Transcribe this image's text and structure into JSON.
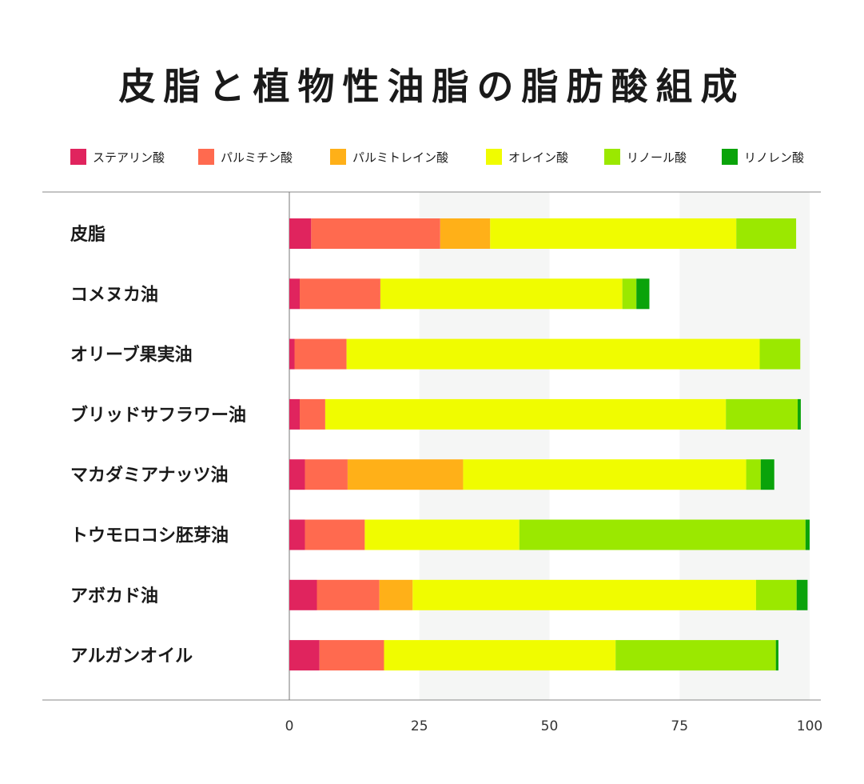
{
  "title": "皮脂と植物性油脂の脂肪酸組成",
  "chart_data": {
    "type": "bar",
    "orientation": "horizontal",
    "stacked": true,
    "title": "皮脂と植物性油脂の脂肪酸組成",
    "categories": [
      "皮脂",
      "コメヌカ油",
      "オリーブ果実油",
      "ブリッドサフラワー油",
      "マカダミアナッツ油",
      "トウモロコシ胚芽油",
      "アボカド油",
      "アルガンオイル"
    ],
    "xlim": [
      0,
      100
    ],
    "xticks": [
      0,
      25,
      50,
      75,
      100
    ],
    "legend_position": "top",
    "series": [
      {
        "name": "ステアリン酸",
        "color": "#e0245e",
        "values": [
          4.2,
          2.0,
          1.0,
          2.0,
          3.0,
          3.0,
          5.3,
          5.8
        ]
      },
      {
        "name": "パルミチン酸",
        "color": "#ff6a4f",
        "values": [
          24.8,
          15.5,
          10.0,
          4.9,
          8.2,
          11.5,
          12.0,
          12.4
        ]
      },
      {
        "name": "パルミトレイン酸",
        "color": "#ffb018",
        "values": [
          9.6,
          0,
          0,
          0,
          22.2,
          0,
          6.4,
          0
        ]
      },
      {
        "name": "オレイン酸",
        "color": "#f0fc00",
        "values": [
          47.3,
          46.5,
          79.4,
          77.0,
          54.4,
          29.7,
          66.0,
          44.5
        ]
      },
      {
        "name": "リノール酸",
        "color": "#9be800",
        "values": [
          11.5,
          2.7,
          7.8,
          13.8,
          2.8,
          55.0,
          7.8,
          30.8
        ]
      },
      {
        "name": "リノレン酸",
        "color": "#0aa30a",
        "values": [
          0,
          2.5,
          0,
          0.6,
          2.6,
          0.8,
          2.1,
          0.5
        ]
      }
    ],
    "grid": "alternating bands"
  }
}
